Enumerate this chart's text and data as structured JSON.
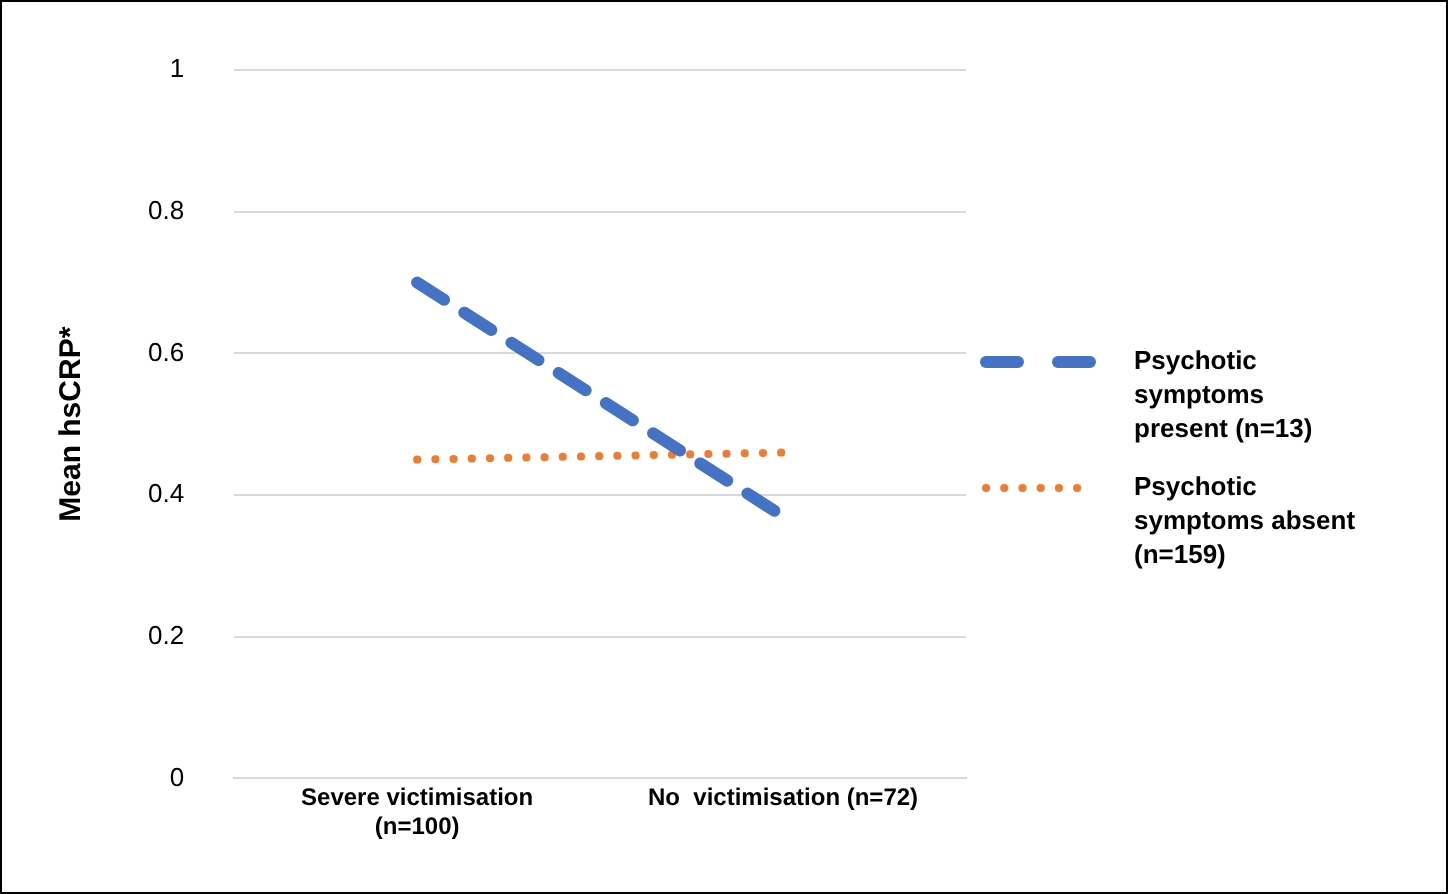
{
  "chart_data": {
    "type": "line",
    "ylabel": "Mean hsCRP*",
    "categories": [
      "Severe victimisation (n=100)",
      "No  victimisation (n=72)"
    ],
    "series": [
      {
        "name": "Psychotic symptoms present (n=13)",
        "color": "#4472c4",
        "values": [
          0.7,
          0.37
        ],
        "line_style": "dashed"
      },
      {
        "name": "Psychotic symptoms absent (n=159)",
        "color": "#ed7d31",
        "values": [
          0.45,
          0.46
        ],
        "line_style": "dotted"
      }
    ],
    "ylim": [
      0,
      1
    ],
    "yticks": [
      0,
      0.2,
      0.4,
      0.6,
      0.8,
      1
    ],
    "grid": "y",
    "legend": "right",
    "marker": "none"
  }
}
